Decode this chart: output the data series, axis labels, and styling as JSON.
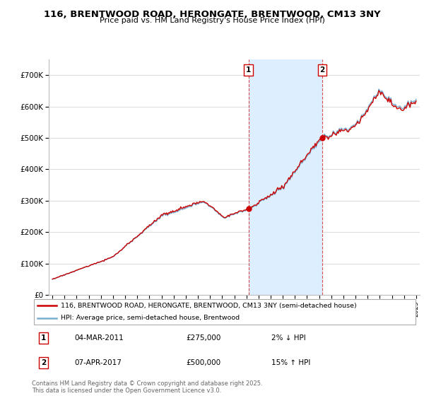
{
  "title": "116, BRENTWOOD ROAD, HERONGATE, BRENTWOOD, CM13 3NY",
  "subtitle": "Price paid vs. HM Land Registry's House Price Index (HPI)",
  "legend_line1": "116, BRENTWOOD ROAD, HERONGATE, BRENTWOOD, CM13 3NY (semi-detached house)",
  "legend_line2": "HPI: Average price, semi-detached house, Brentwood",
  "purchase1_date": "04-MAR-2011",
  "purchase1_price": 275000,
  "purchase1_label": "2% ↓ HPI",
  "purchase2_date": "07-APR-2017",
  "purchase2_price": 500000,
  "purchase2_label": "15% ↑ HPI",
  "purchase1_year": 2011.17,
  "purchase2_year": 2017.27,
  "ylim_max": 750000,
  "footer": "Contains HM Land Registry data © Crown copyright and database right 2025.\nThis data is licensed under the Open Government Licence v3.0.",
  "line_color_price": "#cc0000",
  "line_color_hpi": "#7aadcf",
  "shade_color": "#ddeeff",
  "background_plot": "#ffffff",
  "grid_color": "#dddddd"
}
